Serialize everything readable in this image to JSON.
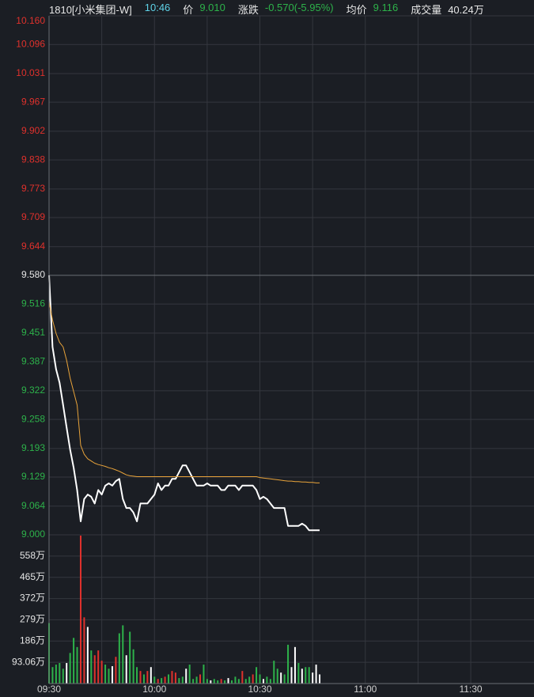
{
  "header": {
    "symbol": {
      "text": "1810[小米集团-W]",
      "color": "#e6e6e6"
    },
    "time": {
      "text": "10:46",
      "color": "#5fd3e8"
    },
    "fields": [
      {
        "label": "价",
        "value": "9.010",
        "color": "#2db24a"
      },
      {
        "label": "涨跌",
        "value": "-0.570(-5.95%)",
        "color": "#2db24a"
      },
      {
        "label": "均价",
        "value": "9.116",
        "color": "#2db24a"
      },
      {
        "label": "成交量",
        "value": "40.24万",
        "color": "#e6e6e6"
      }
    ]
  },
  "chart_data": [
    {
      "type": "line",
      "xlim": [
        0,
        138
      ],
      "x": [
        0,
        1,
        2,
        3,
        4,
        5,
        6,
        7,
        8,
        9,
        10,
        11,
        12,
        13,
        14,
        15,
        16,
        17,
        18,
        19,
        20,
        21,
        22,
        23,
        24,
        25,
        26,
        27,
        28,
        29,
        30,
        31,
        32,
        33,
        34,
        35,
        36,
        37,
        38,
        39,
        40,
        41,
        42,
        43,
        44,
        45,
        46,
        47,
        48,
        49,
        50,
        51,
        52,
        53,
        54,
        55,
        56,
        57,
        58,
        59,
        60,
        61,
        62,
        63,
        64,
        65,
        66,
        67,
        68,
        69,
        70,
        71,
        72,
        73,
        74,
        75,
        76,
        77
      ],
      "ylim": [
        9.0,
        10.16
      ],
      "yticks": [
        {
          "value": 10.16,
          "label": "10.160"
        },
        10.096,
        10.031,
        9.967,
        9.902,
        9.838,
        9.773,
        9.709,
        9.644,
        {
          "value": 9.58,
          "label": "9.580"
        },
        9.516,
        9.451,
        9.387,
        9.322,
        9.258,
        9.193,
        9.129,
        9.064,
        {
          "value": 9.0,
          "label": "9.000"
        }
      ],
      "reference_tick": 9,
      "up_color": "#e0312c",
      "down_color": "#2db24a",
      "flat_color": "#e6e6e6",
      "grid": true,
      "series": [
        {
          "color": "#ffffff",
          "values": [
            9.58,
            9.42,
            9.37,
            9.34,
            9.29,
            9.24,
            9.19,
            9.15,
            9.1,
            9.03,
            9.08,
            9.09,
            9.085,
            9.07,
            9.1,
            9.09,
            9.11,
            9.115,
            9.11,
            9.12,
            9.125,
            9.08,
            9.06,
            9.06,
            9.05,
            9.03,
            9.07,
            9.07,
            9.07,
            9.08,
            9.09,
            9.115,
            9.1,
            9.11,
            9.11,
            9.125,
            9.125,
            9.14,
            9.155,
            9.155,
            9.14,
            9.125,
            9.11,
            9.11,
            9.11,
            9.115,
            9.11,
            9.11,
            9.11,
            9.1,
            9.1,
            9.11,
            9.11,
            9.11,
            9.1,
            9.11,
            9.11,
            9.11,
            9.11,
            9.1,
            9.08,
            9.085,
            9.08,
            9.07,
            9.06,
            9.06,
            9.06,
            9.06,
            9.02,
            9.02,
            9.02,
            9.02,
            9.025,
            9.02,
            9.01,
            9.01,
            9.01,
            9.01
          ]
        },
        {
          "color": "#e8a33a",
          "values": [
            9.52,
            9.48,
            9.45,
            9.43,
            9.42,
            9.39,
            9.35,
            9.32,
            9.29,
            9.2,
            9.18,
            9.17,
            9.165,
            9.16,
            9.157,
            9.155,
            9.153,
            9.15,
            9.148,
            9.145,
            9.142,
            9.138,
            9.134,
            9.132,
            9.131,
            9.13,
            9.13,
            9.13,
            9.13,
            9.13,
            9.13,
            9.13,
            9.13,
            9.13,
            9.13,
            9.13,
            9.13,
            9.13,
            9.13,
            9.13,
            9.13,
            9.13,
            9.13,
            9.13,
            9.13,
            9.13,
            9.13,
            9.13,
            9.13,
            9.13,
            9.13,
            9.13,
            9.13,
            9.13,
            9.13,
            9.13,
            9.13,
            9.13,
            9.13,
            9.13,
            9.128,
            9.127,
            9.126,
            9.125,
            9.124,
            9.123,
            9.122,
            9.121,
            9.12,
            9.12,
            9.119,
            9.119,
            9.118,
            9.118,
            9.117,
            9.117,
            9.116,
            9.116
          ]
        }
      ]
    },
    {
      "type": "bar",
      "xlim": [
        0,
        138
      ],
      "x": [
        0,
        1,
        2,
        3,
        4,
        5,
        6,
        7,
        8,
        9,
        10,
        11,
        12,
        13,
        14,
        15,
        16,
        17,
        18,
        19,
        20,
        21,
        22,
        23,
        24,
        25,
        26,
        27,
        28,
        29,
        30,
        31,
        32,
        33,
        34,
        35,
        36,
        37,
        38,
        39,
        40,
        41,
        42,
        43,
        44,
        45,
        46,
        47,
        48,
        49,
        50,
        51,
        52,
        53,
        54,
        55,
        56,
        57,
        58,
        59,
        60,
        61,
        62,
        63,
        64,
        65,
        66,
        67,
        68,
        69,
        70,
        71,
        72,
        73,
        74,
        75,
        76,
        77
      ],
      "xticks": [
        {
          "value": 0,
          "label": "09:30"
        },
        {
          "value": 30,
          "label": "10:00"
        },
        {
          "value": 60,
          "label": "10:30"
        },
        {
          "value": 90,
          "label": "11:00"
        },
        {
          "value": 120,
          "label": "11:30"
        }
      ],
      "ylim": [
        0,
        651.42
      ],
      "yticks": [
        {
          "value": 93.06,
          "label": "93.06万"
        },
        {
          "value": 186.12,
          "label": "186万"
        },
        {
          "value": 279.18,
          "label": "279万"
        },
        {
          "value": 372.24,
          "label": "372万"
        },
        {
          "value": 465.3,
          "label": "465万"
        },
        {
          "value": 558.36,
          "label": "558万"
        }
      ],
      "grid": true,
      "values": [
        265,
        72,
        83,
        90,
        65,
        90,
        134,
        200,
        160,
        648,
        290,
        248,
        145,
        124,
        145,
        100,
        83,
        65,
        76,
        117,
        220,
        255,
        124,
        227,
        150,
        72,
        55,
        40,
        55,
        72,
        30,
        20,
        24,
        30,
        40,
        55,
        48,
        24,
        30,
        65,
        83,
        20,
        30,
        40,
        83,
        20,
        14,
        20,
        14,
        20,
        14,
        24,
        14,
        30,
        20,
        55,
        20,
        30,
        40,
        72,
        40,
        20,
        30,
        20,
        100,
        65,
        48,
        40,
        170,
        72,
        160,
        90,
        65,
        72,
        72,
        48,
        83,
        40
      ],
      "colors": [
        "#2db24a",
        "#2db24a",
        "#2db24a",
        "#2db24a",
        "#2db24a",
        "#ffffff",
        "#2db24a",
        "#2db24a",
        "#2db24a",
        "#e0312c",
        "#e0312c",
        "#ffffff",
        "#2db24a",
        "#e0312c",
        "#e0312c",
        "#e0312c",
        "#2db24a",
        "#2db24a",
        "#ffffff",
        "#e0312c",
        "#2db24a",
        "#2db24a",
        "#ffffff",
        "#2db24a",
        "#2db24a",
        "#2db24a",
        "#e0312c",
        "#2db24a",
        "#e0312c",
        "#ffffff",
        "#2db24a",
        "#e0312c",
        "#2db24a",
        "#e0312c",
        "#2db24a",
        "#e0312c",
        "#e0312c",
        "#2db24a",
        "#2db24a",
        "#ffffff",
        "#2db24a",
        "#2db24a",
        "#2db24a",
        "#e0312c",
        "#2db24a",
        "#2db24a",
        "#ffffff",
        "#2db24a",
        "#2db24a",
        "#e0312c",
        "#2db24a",
        "#ffffff",
        "#2db24a",
        "#2db24a",
        "#2db24a",
        "#e0312c",
        "#2db24a",
        "#2db24a",
        "#e0312c",
        "#2db24a",
        "#2db24a",
        "#ffffff",
        "#2db24a",
        "#2db24a",
        "#2db24a",
        "#2db24a",
        "#ffffff",
        "#2db24a",
        "#2db24a",
        "#ffffff",
        "#ffffff",
        "#2db24a",
        "#ffffff",
        "#2db24a",
        "#2db24a",
        "#ffffff",
        "#ffffff",
        "#ffffff"
      ]
    }
  ]
}
